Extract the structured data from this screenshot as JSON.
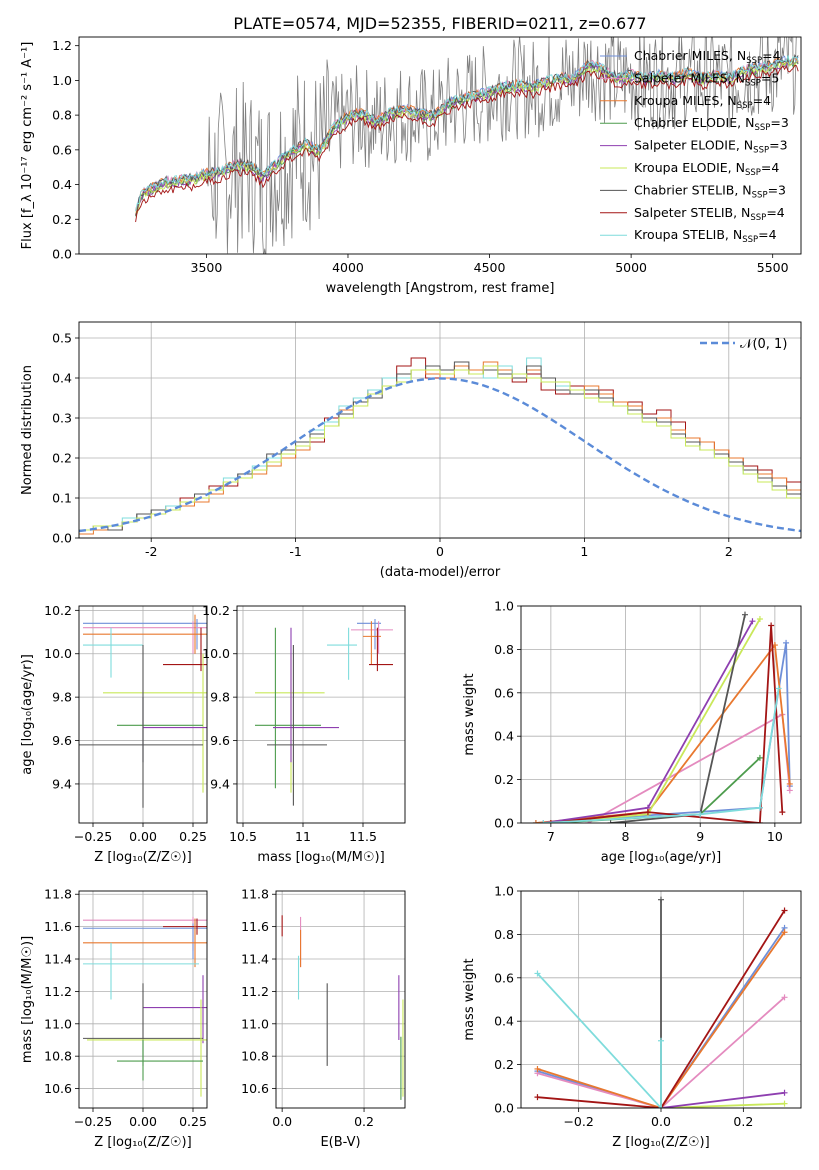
{
  "figure_title": "PLATE=0574, MJD=52355, FIBERID=0211, z=0.677",
  "colors": {
    "chabrier_miles": "#6f8fd8",
    "salpeter_miles": "#e48bbf",
    "kroupa_miles": "#e8782f",
    "chabrier_elodie": "#4d9c4d",
    "salpeter_elodie": "#8e3fb0",
    "kroupa_elodie": "#c9e85a",
    "chabrier_stelib": "#555555",
    "salpeter_stelib": "#a31515",
    "kroupa_stelib": "#7fdcdc",
    "data_gray": "#808080",
    "normal_curve": "#5b8bd8"
  },
  "chart_data": [
    {
      "id": "spectrum",
      "type": "line",
      "xlabel": "wavelength [Angstrom, rest frame]",
      "ylabel": "Flux [f_λ 10⁻¹⁷ erg cm⁻² s⁻¹ A⁻¹]",
      "xlim": [
        3050,
        5600
      ],
      "ylim": [
        0,
        1.25
      ],
      "xticks": [
        3500,
        4000,
        4500,
        5000,
        5500
      ],
      "yticks": [
        0.0,
        0.2,
        0.4,
        0.6,
        0.8,
        1.0,
        1.2
      ],
      "legend_placement": "right",
      "legend": [
        {
          "key": "chabrier_miles",
          "label": "Chabrier MILES, N",
          "sub": "SSP",
          "eq": "=4"
        },
        {
          "key": "salpeter_miles",
          "label": "Salpeter MILES, N",
          "sub": "SSP",
          "eq": "=5"
        },
        {
          "key": "kroupa_miles",
          "label": "Kroupa MILES, N",
          "sub": "SSP",
          "eq": "=4"
        },
        {
          "key": "chabrier_elodie",
          "label": "Chabrier ELODIE, N",
          "sub": "SSP",
          "eq": "=3"
        },
        {
          "key": "salpeter_elodie",
          "label": "Salpeter ELODIE, N",
          "sub": "SSP",
          "eq": "=3"
        },
        {
          "key": "kroupa_elodie",
          "label": "Kroupa ELODIE, N",
          "sub": "SSP",
          "eq": "=4"
        },
        {
          "key": "chabrier_stelib",
          "label": "Chabrier STELIB, N",
          "sub": "SSP",
          "eq": "=3"
        },
        {
          "key": "salpeter_stelib",
          "label": "Salpeter STELIB, N",
          "sub": "SSP",
          "eq": "=4"
        },
        {
          "key": "kroupa_stelib",
          "label": "Kroupa STELIB, N",
          "sub": "SSP",
          "eq": "=4"
        }
      ],
      "model_continuum": [
        [
          3250,
          0.22
        ],
        [
          3270,
          0.33
        ],
        [
          3300,
          0.36
        ],
        [
          3350,
          0.4
        ],
        [
          3400,
          0.41
        ],
        [
          3450,
          0.42
        ],
        [
          3500,
          0.45
        ],
        [
          3550,
          0.46
        ],
        [
          3600,
          0.5
        ],
        [
          3650,
          0.5
        ],
        [
          3700,
          0.44
        ],
        [
          3740,
          0.5
        ],
        [
          3800,
          0.58
        ],
        [
          3850,
          0.62
        ],
        [
          3900,
          0.58
        ],
        [
          3950,
          0.72
        ],
        [
          4000,
          0.78
        ],
        [
          4050,
          0.8
        ],
        [
          4100,
          0.75
        ],
        [
          4150,
          0.8
        ],
        [
          4200,
          0.82
        ],
        [
          4250,
          0.8
        ],
        [
          4300,
          0.78
        ],
        [
          4350,
          0.85
        ],
        [
          4400,
          0.88
        ],
        [
          4450,
          0.9
        ],
        [
          4500,
          0.92
        ],
        [
          4550,
          0.95
        ],
        [
          4600,
          0.96
        ],
        [
          4650,
          0.95
        ],
        [
          4700,
          0.98
        ],
        [
          4750,
          1.0
        ],
        [
          4800,
          1.0
        ],
        [
          4850,
          1.08
        ],
        [
          4900,
          1.05
        ],
        [
          4950,
          1.0
        ],
        [
          5000,
          1.02
        ],
        [
          5050,
          1.0
        ],
        [
          5100,
          1.02
        ],
        [
          5150,
          1.0
        ],
        [
          5200,
          1.03
        ],
        [
          5250,
          1.0
        ],
        [
          5300,
          1.02
        ],
        [
          5350,
          1.0
        ],
        [
          5400,
          1.05
        ],
        [
          5450,
          1.06
        ],
        [
          5500,
          1.08
        ],
        [
          5550,
          1.1
        ],
        [
          5590,
          1.1
        ]
      ]
    },
    {
      "id": "residuals",
      "type": "histogram",
      "xlabel": "(data-model)/error",
      "ylabel": "Normed distribution",
      "xlim": [
        -2.5,
        2.5
      ],
      "ylim": [
        0,
        0.54
      ],
      "xticks": [
        -2,
        -1,
        0,
        1,
        2
      ],
      "yticks": [
        0.0,
        0.1,
        0.2,
        0.3,
        0.4,
        0.5
      ],
      "grid": true,
      "legend_placement": "top-right",
      "legend": [
        {
          "label": "𝒩(0, 1)",
          "key": "normal_curve"
        }
      ],
      "bin_width": 0.1,
      "bin_start": -2.5,
      "series": [
        {
          "key": "salpeter_stelib",
          "values": [
            0.02,
            0.03,
            0.03,
            0.04,
            0.06,
            0.07,
            0.08,
            0.1,
            0.1,
            0.13,
            0.13,
            0.16,
            0.17,
            0.2,
            0.2,
            0.22,
            0.24,
            0.3,
            0.31,
            0.35,
            0.37,
            0.4,
            0.43,
            0.45,
            0.4,
            0.42,
            0.43,
            0.41,
            0.43,
            0.42,
            0.39,
            0.41,
            0.37,
            0.36,
            0.38,
            0.36,
            0.37,
            0.33,
            0.34,
            0.31,
            0.32,
            0.29,
            0.25,
            0.24,
            0.22,
            0.2,
            0.18,
            0.17,
            0.15,
            0.14
          ]
        },
        {
          "key": "kroupa_miles",
          "values": [
            0.01,
            0.02,
            0.02,
            0.04,
            0.05,
            0.06,
            0.08,
            0.08,
            0.09,
            0.11,
            0.14,
            0.15,
            0.16,
            0.18,
            0.2,
            0.22,
            0.26,
            0.28,
            0.32,
            0.34,
            0.36,
            0.38,
            0.4,
            0.42,
            0.41,
            0.4,
            0.43,
            0.42,
            0.44,
            0.42,
            0.41,
            0.42,
            0.4,
            0.38,
            0.37,
            0.38,
            0.36,
            0.34,
            0.33,
            0.3,
            0.3,
            0.27,
            0.25,
            0.24,
            0.22,
            0.2,
            0.17,
            0.16,
            0.15,
            0.12
          ]
        },
        {
          "key": "kroupa_stelib",
          "values": [
            0.02,
            0.03,
            0.03,
            0.05,
            0.06,
            0.07,
            0.08,
            0.09,
            0.11,
            0.12,
            0.15,
            0.16,
            0.18,
            0.2,
            0.22,
            0.23,
            0.27,
            0.29,
            0.33,
            0.35,
            0.37,
            0.4,
            0.4,
            0.42,
            0.43,
            0.42,
            0.42,
            0.41,
            0.4,
            0.43,
            0.4,
            0.45,
            0.39,
            0.38,
            0.36,
            0.37,
            0.35,
            0.33,
            0.31,
            0.3,
            0.29,
            0.26,
            0.24,
            0.22,
            0.2,
            0.19,
            0.16,
            0.15,
            0.13,
            0.11
          ]
        },
        {
          "key": "chabrier_stelib",
          "values": [
            0.02,
            0.03,
            0.02,
            0.04,
            0.06,
            0.07,
            0.07,
            0.09,
            0.11,
            0.12,
            0.14,
            0.16,
            0.17,
            0.21,
            0.22,
            0.24,
            0.26,
            0.28,
            0.31,
            0.34,
            0.35,
            0.38,
            0.41,
            0.42,
            0.43,
            0.42,
            0.44,
            0.41,
            0.42,
            0.41,
            0.4,
            0.43,
            0.4,
            0.37,
            0.36,
            0.37,
            0.35,
            0.33,
            0.32,
            0.3,
            0.29,
            0.26,
            0.24,
            0.22,
            0.21,
            0.19,
            0.17,
            0.15,
            0.13,
            0.11
          ]
        },
        {
          "key": "kroupa_elodie",
          "values": [
            0.02,
            0.03,
            0.03,
            0.04,
            0.05,
            0.06,
            0.07,
            0.09,
            0.1,
            0.12,
            0.14,
            0.15,
            0.17,
            0.19,
            0.21,
            0.23,
            0.25,
            0.28,
            0.3,
            0.33,
            0.36,
            0.38,
            0.39,
            0.42,
            0.42,
            0.41,
            0.42,
            0.41,
            0.43,
            0.4,
            0.41,
            0.4,
            0.39,
            0.39,
            0.37,
            0.35,
            0.34,
            0.33,
            0.31,
            0.29,
            0.28,
            0.25,
            0.23,
            0.22,
            0.2,
            0.18,
            0.16,
            0.14,
            0.12,
            0.1
          ]
        }
      ],
      "normal_curve": "N(0,1)"
    },
    {
      "id": "age_vs_Z",
      "type": "errorbar",
      "xlabel": "Z [log₁₀(Z/Z☉)]",
      "ylabel": "age  [log₁₀(age/yr)]",
      "xlim": [
        -0.32,
        0.32
      ],
      "ylim": [
        9.22,
        10.22
      ],
      "xticks": [
        -0.25,
        0.0,
        0.25
      ],
      "xtick_labels": [
        "−0.25",
        "0.00",
        "0.25"
      ],
      "yticks": [
        9.4,
        9.6,
        9.8,
        10.0,
        10.2
      ],
      "grid": true
    },
    {
      "id": "age_vs_mass",
      "type": "errorbar",
      "xlabel": "mass [log₁₀(M/M☉)]",
      "ylabel": "",
      "xlim": [
        10.45,
        11.85
      ],
      "ylim": [
        9.22,
        10.22
      ],
      "xticks": [
        10.5,
        11.0,
        11.5
      ],
      "yticks": [
        9.4,
        9.6,
        9.8,
        10.0,
        10.2
      ],
      "grid": true
    },
    {
      "id": "mass_weight_vs_age",
      "type": "line",
      "xlabel": "age  [log₁₀(age/yr)]",
      "ylabel": "mass weight",
      "xlim": [
        6.6,
        10.35
      ],
      "ylim": [
        0,
        1.0
      ],
      "xticks": [
        7,
        8,
        9,
        10
      ],
      "yticks": [
        0.0,
        0.2,
        0.4,
        0.6,
        0.8,
        1.0
      ],
      "grid": true,
      "series": [
        {
          "key": "chabrier_miles",
          "x": [
            6.8,
            9.8,
            10.15,
            10.2
          ],
          "y": [
            0.0,
            0.07,
            0.83,
            0.17
          ]
        },
        {
          "key": "salpeter_miles",
          "x": [
            7.5,
            10.1,
            10.2
          ],
          "y": [
            0.0,
            0.5,
            0.15
          ]
        },
        {
          "key": "kroupa_miles",
          "x": [
            6.8,
            8.3,
            10.0,
            10.2
          ],
          "y": [
            0.0,
            0.05,
            0.82,
            0.18
          ]
        },
        {
          "key": "chabrier_elodie",
          "x": [
            7.0,
            9.0,
            9.8
          ],
          "y": [
            0.0,
            0.04,
            0.3
          ]
        },
        {
          "key": "salpeter_elodie",
          "x": [
            6.9,
            8.3,
            9.7
          ],
          "y": [
            0.0,
            0.07,
            0.93
          ]
        },
        {
          "key": "kroupa_elodie",
          "x": [
            7.0,
            8.3,
            9.8
          ],
          "y": [
            0.0,
            0.04,
            0.94
          ]
        },
        {
          "key": "chabrier_stelib",
          "x": [
            7.8,
            9.0,
            9.6
          ],
          "y": [
            0.0,
            0.04,
            0.96
          ]
        },
        {
          "key": "salpeter_stelib",
          "x": [
            7.0,
            8.3,
            9.8,
            9.95,
            10.1
          ],
          "y": [
            0.0,
            0.05,
            0.0,
            0.91,
            0.05
          ]
        },
        {
          "key": "kroupa_stelib",
          "x": [
            6.9,
            9.0,
            9.8,
            10.05
          ],
          "y": [
            0.0,
            0.04,
            0.07,
            0.62
          ]
        }
      ]
    },
    {
      "id": "mass_vs_Z",
      "type": "errorbar",
      "xlabel": "Z [log₁₀(Z/Z☉)]",
      "ylabel": "mass [log₁₀(M/M☉)]",
      "xlim": [
        -0.32,
        0.32
      ],
      "ylim": [
        10.48,
        11.82
      ],
      "xticks": [
        -0.25,
        0.0,
        0.25
      ],
      "xtick_labels": [
        "−0.25",
        "0.00",
        "0.25"
      ],
      "yticks": [
        10.6,
        10.8,
        11.0,
        11.2,
        11.4,
        11.6,
        11.8
      ],
      "grid": true
    },
    {
      "id": "mass_vs_ebv",
      "type": "errorbar",
      "xlabel": "E(B-V)",
      "ylabel": "",
      "xlim": [
        -0.015,
        0.3
      ],
      "ylim": [
        10.48,
        11.82
      ],
      "xticks": [
        0.0,
        0.2
      ],
      "xtick_labels": [
        "0.0",
        "0.2"
      ],
      "yticks": [
        10.6,
        10.8,
        11.0,
        11.2,
        11.4,
        11.6,
        11.8
      ],
      "grid": true
    },
    {
      "id": "mass_weight_vs_Z",
      "type": "line",
      "xlabel": "Z [log₁₀(Z/Z☉)]",
      "ylabel": "mass weight",
      "xlim": [
        -0.34,
        0.34
      ],
      "ylim": [
        0,
        1.0
      ],
      "xticks": [
        -0.2,
        0.0,
        0.2
      ],
      "xtick_labels": [
        "−0.2",
        "0.0",
        "0.2"
      ],
      "yticks": [
        0.0,
        0.2,
        0.4,
        0.6,
        0.8,
        1.0
      ],
      "grid": true,
      "series": [
        {
          "key": "chabrier_miles",
          "x": [
            -0.3,
            0.0,
            0.3
          ],
          "y": [
            0.17,
            0.0,
            0.83
          ]
        },
        {
          "key": "salpeter_miles",
          "x": [
            -0.3,
            0.0,
            0.3
          ],
          "y": [
            0.16,
            0.0,
            0.51
          ]
        },
        {
          "key": "kroupa_miles",
          "x": [
            -0.3,
            0.0,
            0.3
          ],
          "y": [
            0.18,
            0.0,
            0.81
          ]
        },
        {
          "key": "kroupa_elodie",
          "x": [
            0.0,
            0.3
          ],
          "y": [
            0.0,
            0.02
          ]
        },
        {
          "key": "salpeter_elodie",
          "x": [
            0.0,
            0.3
          ],
          "y": [
            0.0,
            0.07
          ]
        },
        {
          "key": "chabrier_stelib",
          "x": [
            0.0,
            0.0
          ],
          "y": [
            0.0,
            0.96
          ]
        },
        {
          "key": "salpeter_stelib",
          "x": [
            -0.3,
            0.0,
            0.3
          ],
          "y": [
            0.05,
            0.0,
            0.91
          ]
        },
        {
          "key": "kroupa_stelib",
          "x": [
            -0.3,
            0.0,
            0.0
          ],
          "y": [
            0.62,
            0.0,
            0.31
          ]
        }
      ]
    }
  ]
}
